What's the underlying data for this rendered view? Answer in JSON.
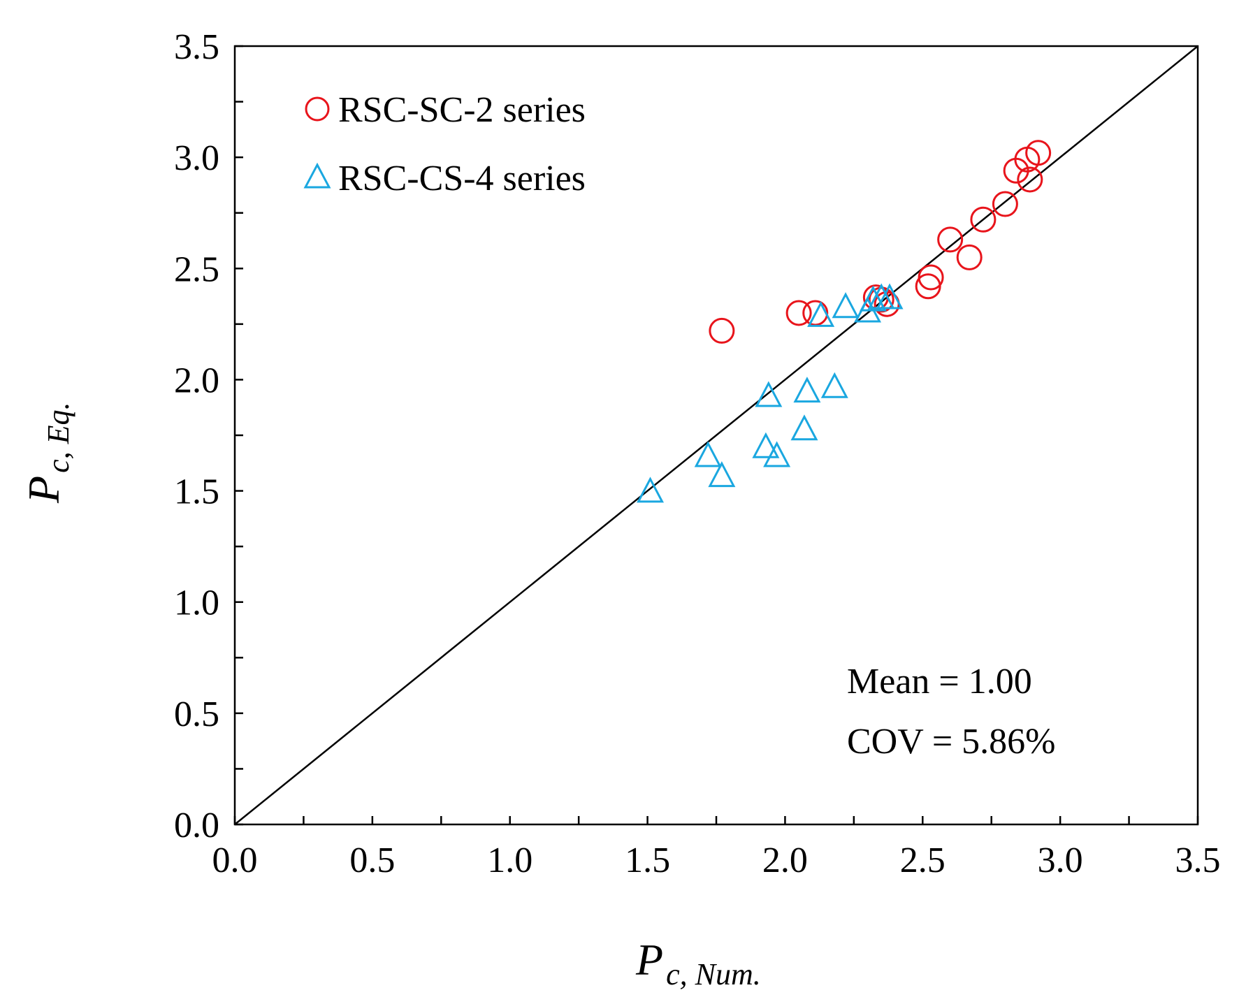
{
  "chart_data": {
    "type": "scatter",
    "xlim": [
      0,
      3.5
    ],
    "ylim": [
      0,
      3.5
    ],
    "x_ticks": [
      "0.0",
      "0.5",
      "1.0",
      "1.5",
      "2.0",
      "2.5",
      "3.0",
      "3.5"
    ],
    "y_ticks": [
      "0.0",
      "0.5",
      "1.0",
      "1.5",
      "2.0",
      "2.5",
      "3.0",
      "3.5"
    ],
    "xlabel_main": "P",
    "xlabel_sub": "c, Num.",
    "ylabel_main": "P",
    "ylabel_sub": "c, Eq.",
    "reference_line": "y = x",
    "grid": false,
    "legend_position": "top-left",
    "series": [
      {
        "name": "RSC-SC-2 series",
        "marker": "circle",
        "color": "#e8141b",
        "points": [
          [
            1.77,
            2.22
          ],
          [
            2.05,
            2.3
          ],
          [
            2.11,
            2.3
          ],
          [
            2.33,
            2.37
          ],
          [
            2.35,
            2.36
          ],
          [
            2.37,
            2.34
          ],
          [
            2.52,
            2.42
          ],
          [
            2.53,
            2.46
          ],
          [
            2.6,
            2.63
          ],
          [
            2.67,
            2.55
          ],
          [
            2.72,
            2.72
          ],
          [
            2.8,
            2.79
          ],
          [
            2.84,
            2.94
          ],
          [
            2.88,
            2.99
          ],
          [
            2.89,
            2.9
          ],
          [
            2.92,
            3.02
          ]
        ]
      },
      {
        "name": "RSC-CS-4 series",
        "marker": "triangle",
        "color": "#1aa7e0",
        "points": [
          [
            1.51,
            1.5
          ],
          [
            1.72,
            1.66
          ],
          [
            1.77,
            1.57
          ],
          [
            1.93,
            1.7
          ],
          [
            1.94,
            1.93
          ],
          [
            1.97,
            1.66
          ],
          [
            2.07,
            1.78
          ],
          [
            2.08,
            1.95
          ],
          [
            2.18,
            1.97
          ],
          [
            2.13,
            2.29
          ],
          [
            2.22,
            2.33
          ],
          [
            2.3,
            2.31
          ],
          [
            2.32,
            2.36
          ],
          [
            2.35,
            2.37
          ],
          [
            2.38,
            2.37
          ]
        ]
      }
    ],
    "annotations": [
      "Mean = 1.00",
      "COV = 5.86%"
    ]
  }
}
